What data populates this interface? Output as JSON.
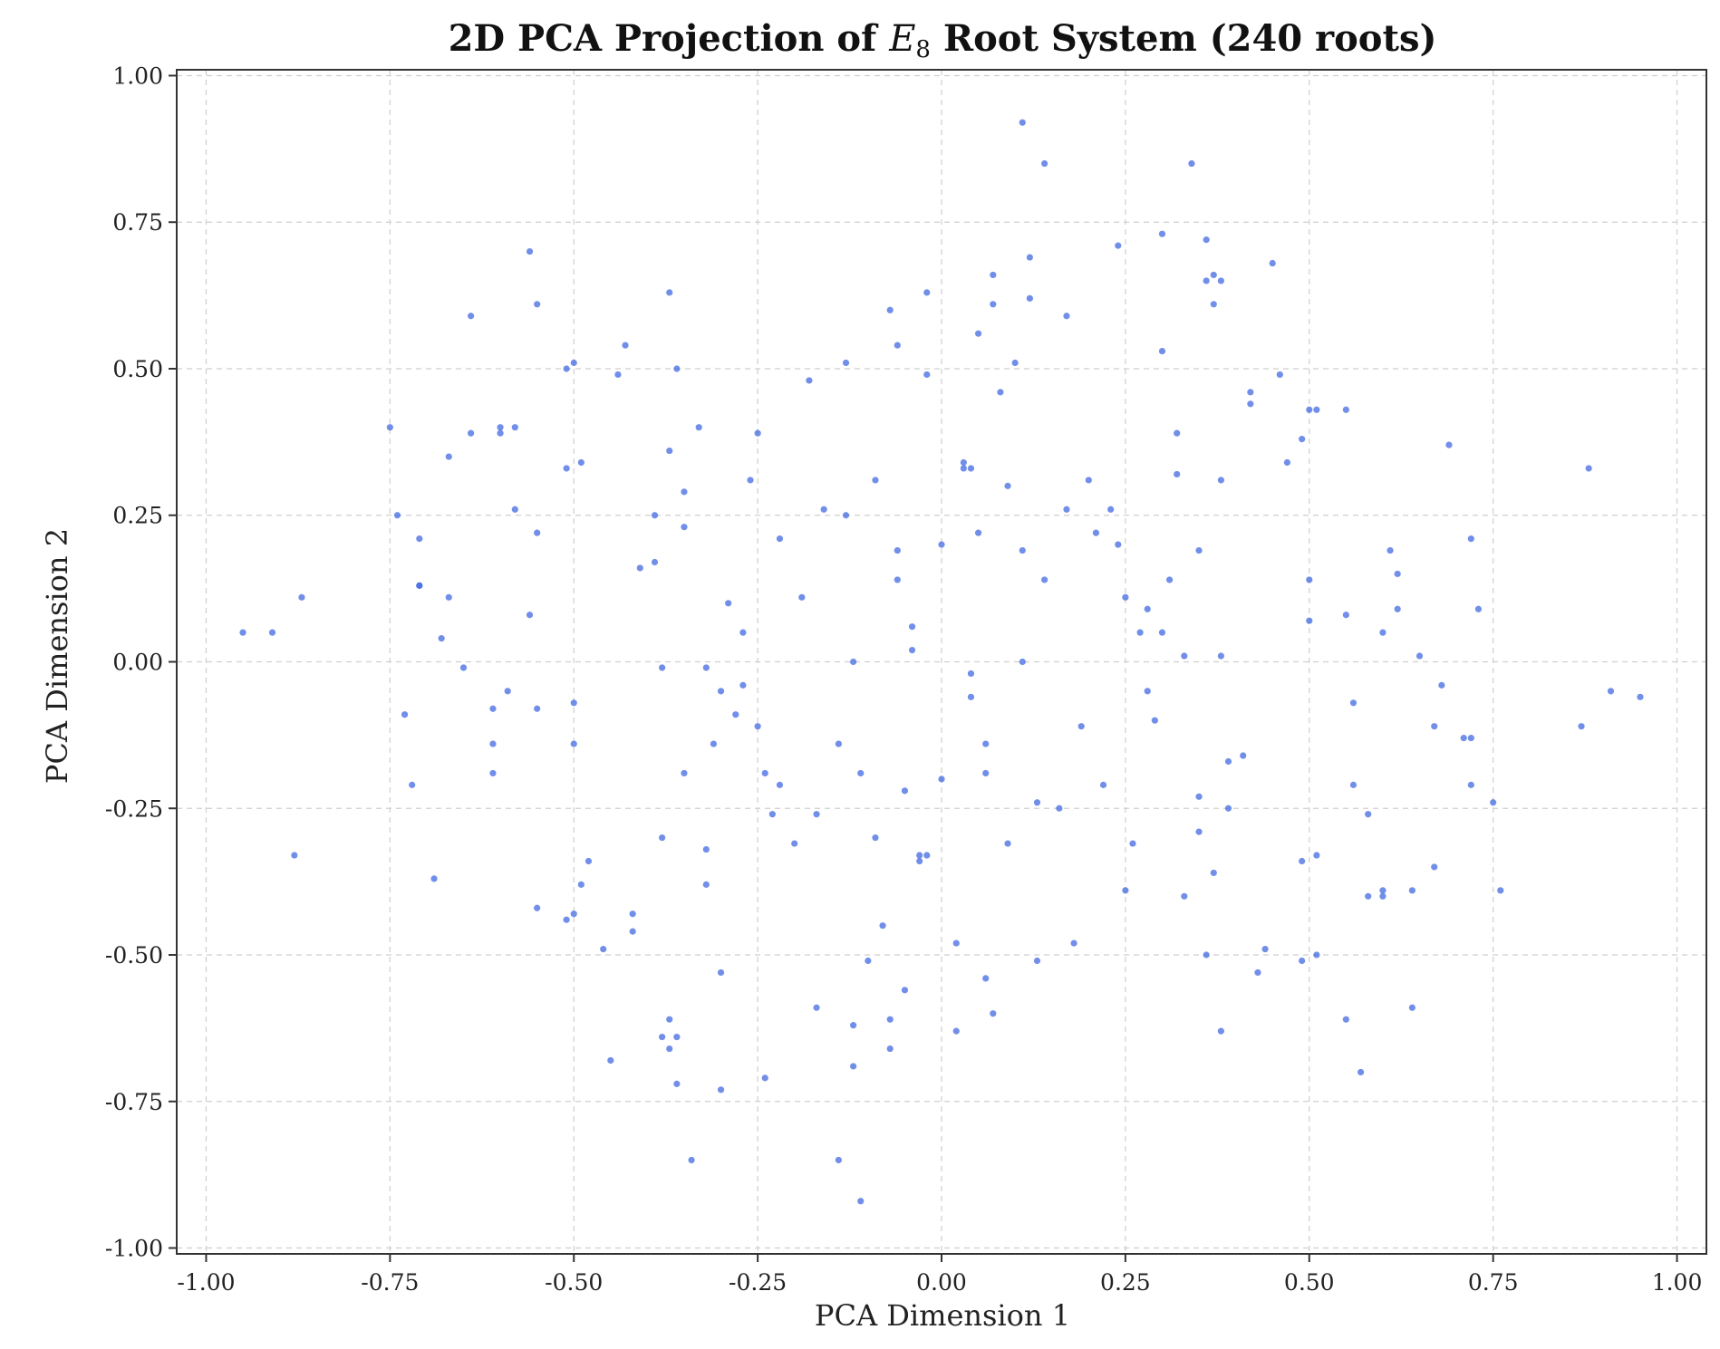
{
  "chart_data": {
    "type": "scatter",
    "title": {
      "prefix": "2D PCA Projection of ",
      "symbol": "E",
      "subscript": "8",
      "suffix": " Root System (240 roots)"
    },
    "xlabel": "PCA Dimension 1",
    "ylabel": "PCA Dimension 2",
    "xlim": [
      -1.04,
      1.04
    ],
    "ylim": [
      -1.01,
      1.01
    ],
    "grid": true,
    "xticks": [
      -1.0,
      -0.75,
      -0.5,
      -0.25,
      0.0,
      0.25,
      0.5,
      0.75,
      1.0
    ],
    "xtick_labels": [
      "-1.00",
      "-0.75",
      "-0.50",
      "-0.25",
      "0.00",
      "0.25",
      "0.50",
      "0.75",
      "1.00"
    ],
    "yticks": [
      -1.0,
      -0.75,
      -0.5,
      -0.25,
      0.0,
      0.25,
      0.5,
      0.75,
      1.0
    ],
    "ytick_labels": [
      "-1.00",
      "-0.75",
      "-0.50",
      "-0.25",
      "0.00",
      "0.25",
      "0.50",
      "0.75",
      "1.00"
    ],
    "point_color": "#4169e1",
    "series": [
      {
        "points": [
          [
            0.11,
            0.92
          ],
          [
            0.14,
            0.85
          ],
          [
            0.34,
            0.85
          ],
          [
            -0.56,
            0.7
          ],
          [
            -0.64,
            0.59
          ],
          [
            -0.55,
            0.61
          ],
          [
            -0.37,
            0.63
          ],
          [
            -0.07,
            0.6
          ],
          [
            -0.02,
            0.63
          ],
          [
            0.07,
            0.66
          ],
          [
            0.12,
            0.69
          ],
          [
            0.12,
            0.62
          ],
          [
            0.07,
            0.61
          ],
          [
            0.05,
            0.56
          ],
          [
            0.17,
            0.59
          ],
          [
            0.24,
            0.71
          ],
          [
            0.3,
            0.73
          ],
          [
            0.36,
            0.72
          ],
          [
            0.37,
            0.66
          ],
          [
            0.38,
            0.65
          ],
          [
            0.36,
            0.65
          ],
          [
            0.37,
            0.61
          ],
          [
            0.45,
            0.68
          ],
          [
            -0.43,
            0.54
          ],
          [
            -0.51,
            0.5
          ],
          [
            -0.5,
            0.51
          ],
          [
            -0.44,
            0.49
          ],
          [
            -0.36,
            0.5
          ],
          [
            -0.06,
            0.54
          ],
          [
            -0.13,
            0.51
          ],
          [
            -0.18,
            0.48
          ],
          [
            -0.02,
            0.49
          ],
          [
            0.1,
            0.51
          ],
          [
            0.08,
            0.46
          ],
          [
            0.3,
            0.53
          ],
          [
            0.46,
            0.49
          ],
          [
            0.42,
            0.46
          ],
          [
            0.42,
            0.44
          ],
          [
            0.5,
            0.43
          ],
          [
            0.51,
            0.43
          ],
          [
            0.55,
            0.43
          ],
          [
            -0.75,
            0.4
          ],
          [
            -0.64,
            0.39
          ],
          [
            -0.6,
            0.4
          ],
          [
            -0.6,
            0.39
          ],
          [
            -0.58,
            0.4
          ],
          [
            -0.67,
            0.35
          ],
          [
            -0.33,
            0.4
          ],
          [
            -0.25,
            0.39
          ],
          [
            -0.37,
            0.36
          ],
          [
            -0.51,
            0.33
          ],
          [
            -0.49,
            0.34
          ],
          [
            -0.35,
            0.29
          ],
          [
            -0.26,
            0.31
          ],
          [
            0.03,
            0.34
          ],
          [
            0.03,
            0.33
          ],
          [
            0.04,
            0.33
          ],
          [
            0.09,
            0.3
          ],
          [
            -0.09,
            0.31
          ],
          [
            0.2,
            0.31
          ],
          [
            0.32,
            0.39
          ],
          [
            0.32,
            0.32
          ],
          [
            0.38,
            0.31
          ],
          [
            0.47,
            0.34
          ],
          [
            0.49,
            0.38
          ],
          [
            0.69,
            0.37
          ],
          [
            0.88,
            0.33
          ],
          [
            -0.74,
            0.25
          ],
          [
            -0.71,
            0.21
          ],
          [
            -0.58,
            0.26
          ],
          [
            -0.55,
            0.22
          ],
          [
            -0.39,
            0.25
          ],
          [
            -0.35,
            0.23
          ],
          [
            -0.41,
            0.16
          ],
          [
            -0.39,
            0.17
          ],
          [
            -0.16,
            0.26
          ],
          [
            -0.13,
            0.25
          ],
          [
            -0.22,
            0.21
          ],
          [
            -0.06,
            0.19
          ],
          [
            0.0,
            0.2
          ],
          [
            0.05,
            0.22
          ],
          [
            0.17,
            0.26
          ],
          [
            0.23,
            0.26
          ],
          [
            0.21,
            0.22
          ],
          [
            0.24,
            0.2
          ],
          [
            0.11,
            0.19
          ],
          [
            0.35,
            0.19
          ],
          [
            0.61,
            0.19
          ],
          [
            0.72,
            0.21
          ],
          [
            -0.71,
            0.13
          ],
          [
            -0.71,
            0.13
          ],
          [
            -0.87,
            0.11
          ],
          [
            -0.67,
            0.11
          ],
          [
            -0.56,
            0.08
          ],
          [
            -0.29,
            0.1
          ],
          [
            -0.19,
            0.11
          ],
          [
            -0.06,
            0.14
          ],
          [
            0.14,
            0.14
          ],
          [
            0.31,
            0.14
          ],
          [
            0.25,
            0.11
          ],
          [
            0.28,
            0.09
          ],
          [
            0.5,
            0.14
          ],
          [
            0.62,
            0.15
          ],
          [
            0.55,
            0.08
          ],
          [
            0.62,
            0.09
          ],
          [
            0.73,
            0.09
          ],
          [
            -0.95,
            0.05
          ],
          [
            -0.91,
            0.05
          ],
          [
            -0.68,
            0.04
          ],
          [
            -0.27,
            0.05
          ],
          [
            -0.04,
            0.06
          ],
          [
            -0.04,
            0.02
          ],
          [
            0.27,
            0.05
          ],
          [
            0.3,
            0.05
          ],
          [
            0.33,
            0.01
          ],
          [
            0.38,
            0.01
          ],
          [
            0.5,
            0.07
          ],
          [
            0.6,
            0.05
          ],
          [
            0.65,
            0.01
          ],
          [
            -0.65,
            -0.01
          ],
          [
            -0.38,
            -0.01
          ],
          [
            -0.32,
            -0.01
          ],
          [
            -0.12,
            0.0
          ],
          [
            0.11,
            0.0
          ],
          [
            0.04,
            -0.02
          ],
          [
            -0.73,
            -0.09
          ],
          [
            -0.61,
            -0.08
          ],
          [
            -0.59,
            -0.05
          ],
          [
            -0.55,
            -0.08
          ],
          [
            -0.5,
            -0.07
          ],
          [
            -0.3,
            -0.05
          ],
          [
            -0.27,
            -0.04
          ],
          [
            -0.28,
            -0.09
          ],
          [
            0.04,
            -0.06
          ],
          [
            0.28,
            -0.05
          ],
          [
            0.29,
            -0.1
          ],
          [
            0.19,
            -0.11
          ],
          [
            0.56,
            -0.07
          ],
          [
            0.68,
            -0.04
          ],
          [
            0.67,
            -0.11
          ],
          [
            0.71,
            -0.13
          ],
          [
            0.72,
            -0.13
          ],
          [
            0.87,
            -0.11
          ],
          [
            0.91,
            -0.05
          ],
          [
            0.95,
            -0.06
          ],
          [
            -0.72,
            -0.21
          ],
          [
            -0.61,
            -0.14
          ],
          [
            -0.61,
            -0.19
          ],
          [
            -0.5,
            -0.14
          ],
          [
            -0.31,
            -0.14
          ],
          [
            -0.35,
            -0.19
          ],
          [
            -0.25,
            -0.11
          ],
          [
            -0.24,
            -0.19
          ],
          [
            -0.22,
            -0.21
          ],
          [
            -0.23,
            -0.26
          ],
          [
            -0.17,
            -0.26
          ],
          [
            -0.14,
            -0.14
          ],
          [
            -0.11,
            -0.19
          ],
          [
            -0.05,
            -0.22
          ],
          [
            0.0,
            -0.2
          ],
          [
            0.06,
            -0.14
          ],
          [
            0.06,
            -0.19
          ],
          [
            0.13,
            -0.24
          ],
          [
            0.16,
            -0.25
          ],
          [
            0.22,
            -0.21
          ],
          [
            0.35,
            -0.23
          ],
          [
            0.39,
            -0.17
          ],
          [
            0.41,
            -0.16
          ],
          [
            0.39,
            -0.25
          ],
          [
            0.56,
            -0.21
          ],
          [
            0.58,
            -0.26
          ],
          [
            0.72,
            -0.21
          ],
          [
            0.75,
            -0.24
          ],
          [
            -0.88,
            -0.33
          ],
          [
            -0.69,
            -0.37
          ],
          [
            -0.38,
            -0.3
          ],
          [
            -0.32,
            -0.32
          ],
          [
            -0.2,
            -0.31
          ],
          [
            -0.09,
            -0.3
          ],
          [
            -0.03,
            -0.33
          ],
          [
            -0.03,
            -0.34
          ],
          [
            -0.02,
            -0.33
          ],
          [
            0.09,
            -0.31
          ],
          [
            0.26,
            -0.31
          ],
          [
            0.35,
            -0.29
          ],
          [
            0.37,
            -0.36
          ],
          [
            0.49,
            -0.34
          ],
          [
            0.51,
            -0.33
          ],
          [
            -0.48,
            -0.34
          ],
          [
            -0.49,
            -0.38
          ],
          [
            -0.32,
            -0.38
          ],
          [
            -0.55,
            -0.42
          ],
          [
            -0.51,
            -0.44
          ],
          [
            -0.5,
            -0.43
          ],
          [
            -0.42,
            -0.43
          ],
          [
            -0.42,
            -0.46
          ],
          [
            0.25,
            -0.39
          ],
          [
            0.33,
            -0.4
          ],
          [
            0.58,
            -0.4
          ],
          [
            0.6,
            -0.39
          ],
          [
            0.6,
            -0.4
          ],
          [
            0.64,
            -0.39
          ],
          [
            0.67,
            -0.35
          ],
          [
            0.76,
            -0.39
          ],
          [
            -0.46,
            -0.49
          ],
          [
            -0.3,
            -0.53
          ],
          [
            -0.08,
            -0.45
          ],
          [
            -0.1,
            -0.51
          ],
          [
            -0.05,
            -0.56
          ],
          [
            0.02,
            -0.48
          ],
          [
            0.13,
            -0.51
          ],
          [
            0.18,
            -0.48
          ],
          [
            0.36,
            -0.5
          ],
          [
            0.44,
            -0.49
          ],
          [
            0.43,
            -0.53
          ],
          [
            0.49,
            -0.51
          ],
          [
            0.51,
            -0.5
          ],
          [
            0.06,
            -0.54
          ],
          [
            -0.37,
            -0.61
          ],
          [
            -0.38,
            -0.64
          ],
          [
            -0.37,
            -0.66
          ],
          [
            -0.36,
            -0.64
          ],
          [
            -0.45,
            -0.68
          ],
          [
            -0.17,
            -0.59
          ],
          [
            -0.12,
            -0.62
          ],
          [
            -0.07,
            -0.61
          ],
          [
            -0.07,
            -0.66
          ],
          [
            -0.12,
            -0.69
          ],
          [
            0.02,
            -0.63
          ],
          [
            0.07,
            -0.6
          ],
          [
            0.38,
            -0.63
          ],
          [
            0.55,
            -0.61
          ],
          [
            0.64,
            -0.59
          ],
          [
            -0.36,
            -0.72
          ],
          [
            -0.3,
            -0.73
          ],
          [
            -0.24,
            -0.71
          ],
          [
            0.57,
            -0.7
          ],
          [
            -0.34,
            -0.85
          ],
          [
            -0.14,
            -0.85
          ],
          [
            -0.11,
            -0.92
          ]
        ]
      }
    ]
  }
}
